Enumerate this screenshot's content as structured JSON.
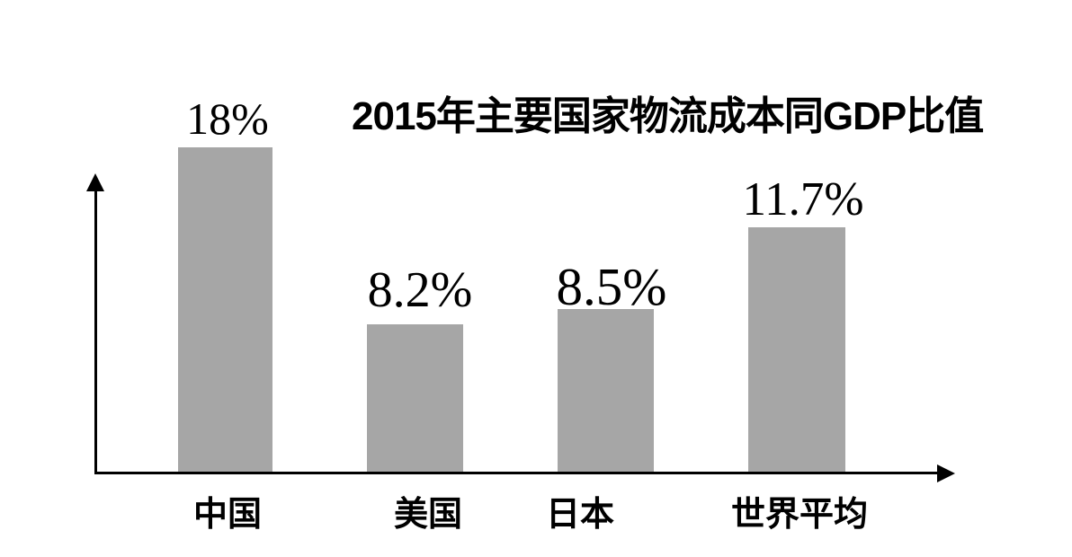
{
  "chart_data": {
    "type": "bar",
    "title": "2015年主要国家物流成本同GDP比值",
    "categories": [
      "中国",
      "美国",
      "日本",
      "世界平均"
    ],
    "values": [
      18,
      8.2,
      8.5,
      11.7
    ],
    "value_labels": [
      "18%",
      "8.2%",
      "8.5%",
      "11.7%"
    ],
    "unit": "% of GDP",
    "ylim": [
      0,
      20
    ],
    "grid": false,
    "legend": "none",
    "bar_color": "#a6a6a6",
    "axis_color": "#000000",
    "text_color": "#000000",
    "background_color": "#ffffff",
    "axis_style": "arrow-ended, no tick marks, no tick labels"
  }
}
